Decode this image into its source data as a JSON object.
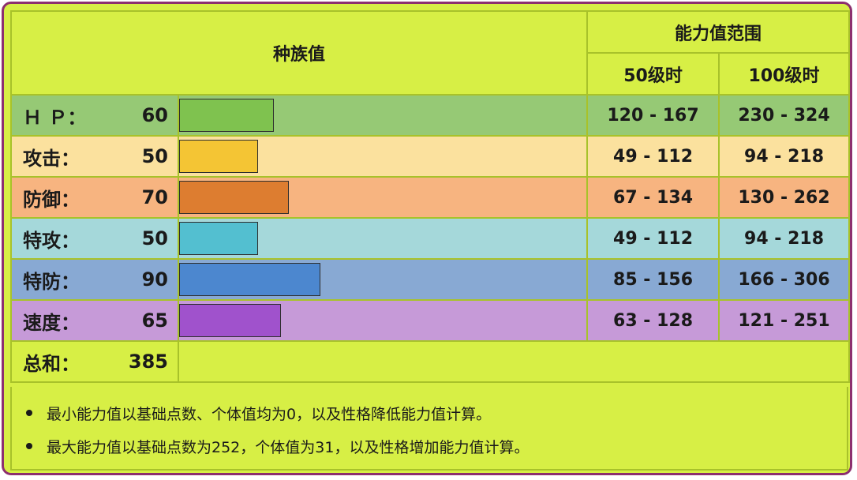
{
  "header": {
    "base_stats": "种族值",
    "stat_range": "能力值范围",
    "lv50": "50级时",
    "lv100": "100级时"
  },
  "stats": [
    {
      "label": "Ｈ Ｐ：",
      "value": "60",
      "base": 60,
      "range50": "120 - 167",
      "range100": "230 - 324",
      "row_color": "#96c975",
      "bar_color": "#7fc24f"
    },
    {
      "label": "攻击：",
      "value": "50",
      "base": 50,
      "range50": "49 - 112",
      "range100": "94 - 218",
      "row_color": "#fbe19e",
      "bar_color": "#f4c534"
    },
    {
      "label": "防御：",
      "value": "70",
      "base": 70,
      "range50": "67 - 134",
      "range100": "130 - 262",
      "row_color": "#f7b480",
      "bar_color": "#dd7d30"
    },
    {
      "label": "特攻：",
      "value": "50",
      "base": 50,
      "range50": "49 - 112",
      "range100": "94 - 218",
      "row_color": "#a5d8da",
      "bar_color": "#53bfd0"
    },
    {
      "label": "特防：",
      "value": "90",
      "base": 90,
      "range50": "85 - 156",
      "range100": "166 - 306",
      "row_color": "#88a9d3",
      "bar_color": "#4c87cf"
    },
    {
      "label": "速度：",
      "value": "65",
      "base": 65,
      "range50": "63 - 128",
      "range100": "121 - 251",
      "row_color": "#c69ad8",
      "bar_color": "#a052cc"
    }
  ],
  "total": {
    "label": "总和：",
    "value": "385"
  },
  "notes": [
    "最小能力值以基础点数、个体值均为0，以及性格降低能力值计算。",
    "最大能力值以基础点数为252，个体值为31，以及性格增加能力值计算。"
  ],
  "bar_scale_max": 255
}
